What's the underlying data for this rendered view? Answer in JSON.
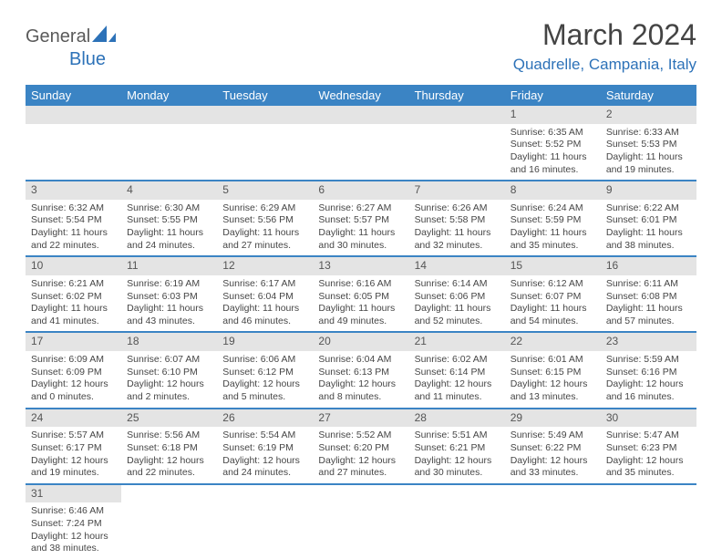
{
  "logo": {
    "general": "General",
    "blue": "Blue"
  },
  "title": "March 2024",
  "subtitle": "Quadrelle, Campania, Italy",
  "colors": {
    "header_bg": "#3b84c4",
    "header_text": "#ffffff",
    "daynum_bg": "#e4e4e4",
    "border": "#3b84c4",
    "title_color": "#444444",
    "subtitle_color": "#2d72b8"
  },
  "daynames": [
    "Sunday",
    "Monday",
    "Tuesday",
    "Wednesday",
    "Thursday",
    "Friday",
    "Saturday"
  ],
  "weeks": [
    [
      null,
      null,
      null,
      null,
      null,
      {
        "n": "1",
        "sunrise": "Sunrise: 6:35 AM",
        "sunset": "Sunset: 5:52 PM",
        "daylight": "Daylight: 11 hours and 16 minutes."
      },
      {
        "n": "2",
        "sunrise": "Sunrise: 6:33 AM",
        "sunset": "Sunset: 5:53 PM",
        "daylight": "Daylight: 11 hours and 19 minutes."
      }
    ],
    [
      {
        "n": "3",
        "sunrise": "Sunrise: 6:32 AM",
        "sunset": "Sunset: 5:54 PM",
        "daylight": "Daylight: 11 hours and 22 minutes."
      },
      {
        "n": "4",
        "sunrise": "Sunrise: 6:30 AM",
        "sunset": "Sunset: 5:55 PM",
        "daylight": "Daylight: 11 hours and 24 minutes."
      },
      {
        "n": "5",
        "sunrise": "Sunrise: 6:29 AM",
        "sunset": "Sunset: 5:56 PM",
        "daylight": "Daylight: 11 hours and 27 minutes."
      },
      {
        "n": "6",
        "sunrise": "Sunrise: 6:27 AM",
        "sunset": "Sunset: 5:57 PM",
        "daylight": "Daylight: 11 hours and 30 minutes."
      },
      {
        "n": "7",
        "sunrise": "Sunrise: 6:26 AM",
        "sunset": "Sunset: 5:58 PM",
        "daylight": "Daylight: 11 hours and 32 minutes."
      },
      {
        "n": "8",
        "sunrise": "Sunrise: 6:24 AM",
        "sunset": "Sunset: 5:59 PM",
        "daylight": "Daylight: 11 hours and 35 minutes."
      },
      {
        "n": "9",
        "sunrise": "Sunrise: 6:22 AM",
        "sunset": "Sunset: 6:01 PM",
        "daylight": "Daylight: 11 hours and 38 minutes."
      }
    ],
    [
      {
        "n": "10",
        "sunrise": "Sunrise: 6:21 AM",
        "sunset": "Sunset: 6:02 PM",
        "daylight": "Daylight: 11 hours and 41 minutes."
      },
      {
        "n": "11",
        "sunrise": "Sunrise: 6:19 AM",
        "sunset": "Sunset: 6:03 PM",
        "daylight": "Daylight: 11 hours and 43 minutes."
      },
      {
        "n": "12",
        "sunrise": "Sunrise: 6:17 AM",
        "sunset": "Sunset: 6:04 PM",
        "daylight": "Daylight: 11 hours and 46 minutes."
      },
      {
        "n": "13",
        "sunrise": "Sunrise: 6:16 AM",
        "sunset": "Sunset: 6:05 PM",
        "daylight": "Daylight: 11 hours and 49 minutes."
      },
      {
        "n": "14",
        "sunrise": "Sunrise: 6:14 AM",
        "sunset": "Sunset: 6:06 PM",
        "daylight": "Daylight: 11 hours and 52 minutes."
      },
      {
        "n": "15",
        "sunrise": "Sunrise: 6:12 AM",
        "sunset": "Sunset: 6:07 PM",
        "daylight": "Daylight: 11 hours and 54 minutes."
      },
      {
        "n": "16",
        "sunrise": "Sunrise: 6:11 AM",
        "sunset": "Sunset: 6:08 PM",
        "daylight": "Daylight: 11 hours and 57 minutes."
      }
    ],
    [
      {
        "n": "17",
        "sunrise": "Sunrise: 6:09 AM",
        "sunset": "Sunset: 6:09 PM",
        "daylight": "Daylight: 12 hours and 0 minutes."
      },
      {
        "n": "18",
        "sunrise": "Sunrise: 6:07 AM",
        "sunset": "Sunset: 6:10 PM",
        "daylight": "Daylight: 12 hours and 2 minutes."
      },
      {
        "n": "19",
        "sunrise": "Sunrise: 6:06 AM",
        "sunset": "Sunset: 6:12 PM",
        "daylight": "Daylight: 12 hours and 5 minutes."
      },
      {
        "n": "20",
        "sunrise": "Sunrise: 6:04 AM",
        "sunset": "Sunset: 6:13 PM",
        "daylight": "Daylight: 12 hours and 8 minutes."
      },
      {
        "n": "21",
        "sunrise": "Sunrise: 6:02 AM",
        "sunset": "Sunset: 6:14 PM",
        "daylight": "Daylight: 12 hours and 11 minutes."
      },
      {
        "n": "22",
        "sunrise": "Sunrise: 6:01 AM",
        "sunset": "Sunset: 6:15 PM",
        "daylight": "Daylight: 12 hours and 13 minutes."
      },
      {
        "n": "23",
        "sunrise": "Sunrise: 5:59 AM",
        "sunset": "Sunset: 6:16 PM",
        "daylight": "Daylight: 12 hours and 16 minutes."
      }
    ],
    [
      {
        "n": "24",
        "sunrise": "Sunrise: 5:57 AM",
        "sunset": "Sunset: 6:17 PM",
        "daylight": "Daylight: 12 hours and 19 minutes."
      },
      {
        "n": "25",
        "sunrise": "Sunrise: 5:56 AM",
        "sunset": "Sunset: 6:18 PM",
        "daylight": "Daylight: 12 hours and 22 minutes."
      },
      {
        "n": "26",
        "sunrise": "Sunrise: 5:54 AM",
        "sunset": "Sunset: 6:19 PM",
        "daylight": "Daylight: 12 hours and 24 minutes."
      },
      {
        "n": "27",
        "sunrise": "Sunrise: 5:52 AM",
        "sunset": "Sunset: 6:20 PM",
        "daylight": "Daylight: 12 hours and 27 minutes."
      },
      {
        "n": "28",
        "sunrise": "Sunrise: 5:51 AM",
        "sunset": "Sunset: 6:21 PM",
        "daylight": "Daylight: 12 hours and 30 minutes."
      },
      {
        "n": "29",
        "sunrise": "Sunrise: 5:49 AM",
        "sunset": "Sunset: 6:22 PM",
        "daylight": "Daylight: 12 hours and 33 minutes."
      },
      {
        "n": "30",
        "sunrise": "Sunrise: 5:47 AM",
        "sunset": "Sunset: 6:23 PM",
        "daylight": "Daylight: 12 hours and 35 minutes."
      }
    ],
    [
      {
        "n": "31",
        "sunrise": "Sunrise: 6:46 AM",
        "sunset": "Sunset: 7:24 PM",
        "daylight": "Daylight: 12 hours and 38 minutes."
      },
      null,
      null,
      null,
      null,
      null,
      null
    ]
  ]
}
